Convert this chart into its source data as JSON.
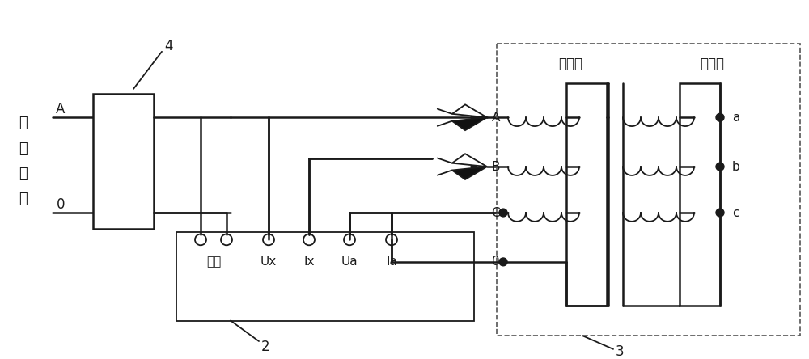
{
  "bg": "#ffffff",
  "lc": "#1a1a1a",
  "source_chars": [
    "单",
    "相",
    "电",
    "源"
  ],
  "label_ruyin": "输入",
  "label_Ux": "Ux",
  "label_Ix": "Ix",
  "label_Ua": "Ua",
  "label_Ia": "Ia",
  "label_hv": "高压侧",
  "label_lv": "低压侧",
  "figsize": [
    10.0,
    4.44
  ],
  "dpi": 100
}
